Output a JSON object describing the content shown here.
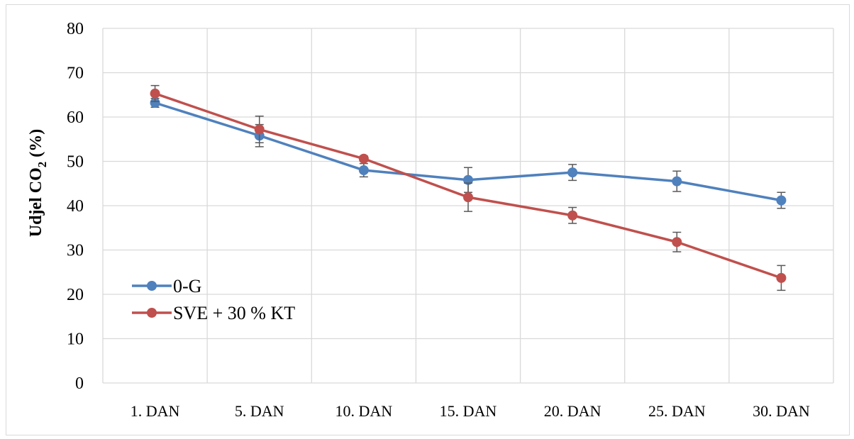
{
  "chart_data": {
    "type": "line",
    "title": "",
    "xlabel": "",
    "ylabel": "Udjel CO",
    "ylabel_sub": "2",
    "ylabel_suffix": " (%)",
    "ylim": [
      0,
      80
    ],
    "yticks": [
      0,
      10,
      20,
      30,
      40,
      50,
      60,
      70,
      80
    ],
    "categories": [
      "1. DAN",
      "5. DAN",
      "10. DAN",
      "15. DAN",
      "20. DAN",
      "25. DAN",
      "30. DAN"
    ],
    "grid": true,
    "legend_position": "left",
    "series": [
      {
        "name": "0-G",
        "color": "#4f81bd",
        "values": [
          63.2,
          55.8,
          48.0,
          45.8,
          47.5,
          45.5,
          41.2
        ],
        "errors": [
          1.0,
          2.5,
          1.5,
          2.8,
          1.8,
          2.3,
          1.8
        ]
      },
      {
        "name": "SVE + 30 % KT",
        "color": "#c0504d",
        "values": [
          65.3,
          57.2,
          50.6,
          41.9,
          37.8,
          31.8,
          23.7
        ],
        "errors": [
          1.8,
          3.0,
          0.6,
          3.2,
          1.8,
          2.2,
          2.8
        ]
      }
    ]
  }
}
